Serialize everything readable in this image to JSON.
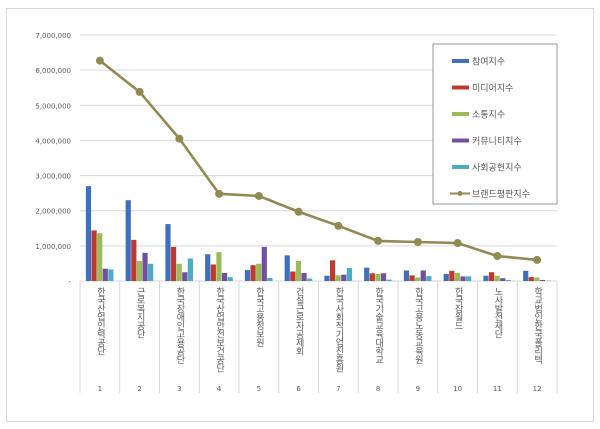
{
  "chart_data": {
    "type": "bar",
    "title": "",
    "xlabel": "",
    "ylabel": "",
    "ylim": [
      0,
      7000000
    ],
    "yticks": [
      0,
      1000000,
      2000000,
      3000000,
      4000000,
      5000000,
      6000000,
      7000000
    ],
    "ytick_labels": [
      "-",
      "1,000,000",
      "2,000,000",
      "3,000,000",
      "4,000,000",
      "5,000,000",
      "6,000,000",
      "7,000,000"
    ],
    "grid": true,
    "legend_placement": "top-right",
    "categories": [
      "한국산업인력공단",
      "근로복지공단",
      "한국장애인고용공단",
      "한국산업안전보건공단",
      "한국고용정보원",
      "건설근로자공제회",
      "한국사회적기업진흥원",
      "한국기술교육대학교",
      "한국고용노동교육원",
      "한국잡월드",
      "노사발전재단",
      "학교법인한국폴리텍"
    ],
    "category_numbers": [
      "1",
      "2",
      "3",
      "4",
      "5",
      "6",
      "7",
      "8",
      "9",
      "10",
      "11",
      "12"
    ],
    "series": [
      {
        "name": "참여지수",
        "type": "bar",
        "color": "#3f6fbf",
        "values": [
          2700000,
          2300000,
          1620000,
          760000,
          310000,
          730000,
          150000,
          380000,
          300000,
          200000,
          150000,
          290000
        ]
      },
      {
        "name": "미디어지수",
        "type": "bar",
        "color": "#c0392f",
        "values": [
          1440000,
          1170000,
          970000,
          470000,
          450000,
          270000,
          590000,
          220000,
          160000,
          290000,
          250000,
          110000
        ]
      },
      {
        "name": "소통지수",
        "type": "bar",
        "color": "#9bbb59",
        "values": [
          1360000,
          570000,
          490000,
          820000,
          490000,
          570000,
          160000,
          200000,
          100000,
          230000,
          150000,
          100000
        ]
      },
      {
        "name": "커뮤니티지수",
        "type": "bar",
        "color": "#7150a0",
        "values": [
          350000,
          800000,
          250000,
          230000,
          970000,
          230000,
          180000,
          220000,
          300000,
          130000,
          80000,
          30000
        ]
      },
      {
        "name": "사회공헌지수",
        "type": "bar",
        "color": "#4bacc6",
        "values": [
          330000,
          490000,
          640000,
          110000,
          90000,
          70000,
          370000,
          40000,
          140000,
          130000,
          30000,
          10000
        ]
      },
      {
        "name": "브랜드평판지수",
        "type": "line",
        "color": "#938953",
        "values": [
          6270000,
          5380000,
          4050000,
          2480000,
          2420000,
          1970000,
          1570000,
          1140000,
          1110000,
          1080000,
          710000,
          600000
        ]
      }
    ]
  }
}
